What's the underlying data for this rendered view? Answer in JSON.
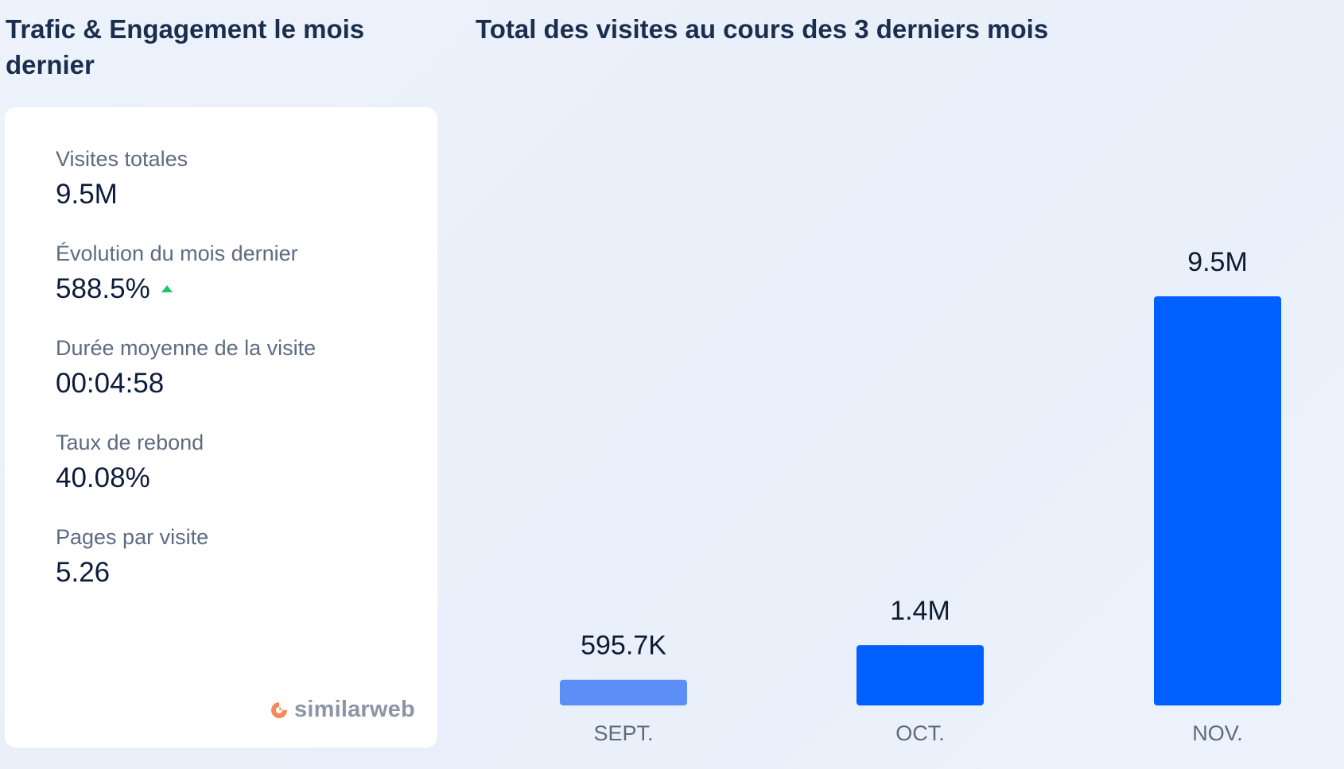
{
  "left_panel": {
    "title": "Trafic & Engagement le mois dernier",
    "metrics": [
      {
        "label": "Visites totales",
        "value": "9.5M"
      },
      {
        "label": "Évolution du mois dernier",
        "value": "588.5%",
        "trend": "up"
      },
      {
        "label": "Durée moyenne de la visite",
        "value": "00:04:58"
      },
      {
        "label": "Taux de rebond",
        "value": "40.08%"
      },
      {
        "label": "Pages par visite",
        "value": "5.26"
      }
    ],
    "logo_text": "similarweb"
  },
  "right_panel": {
    "title": "Total des visites au cours des 3 derniers mois"
  },
  "colors": {
    "bar_primary": "#0060ff",
    "bar_light": "#5b8ef7",
    "trend_up": "#1ec46e",
    "logo_orange": "#f4895c"
  },
  "chart_data": {
    "type": "bar",
    "title": "Total des visites au cours des 3 derniers mois",
    "categories": [
      "SEPT.",
      "OCT.",
      "NOV."
    ],
    "values": [
      595700,
      1400000,
      9500000
    ],
    "value_labels": [
      "595.7K",
      "1.4M",
      "9.5M"
    ],
    "xlabel": "",
    "ylabel": "",
    "ylim": [
      0,
      9500000
    ],
    "grid": false,
    "legend": "none"
  }
}
